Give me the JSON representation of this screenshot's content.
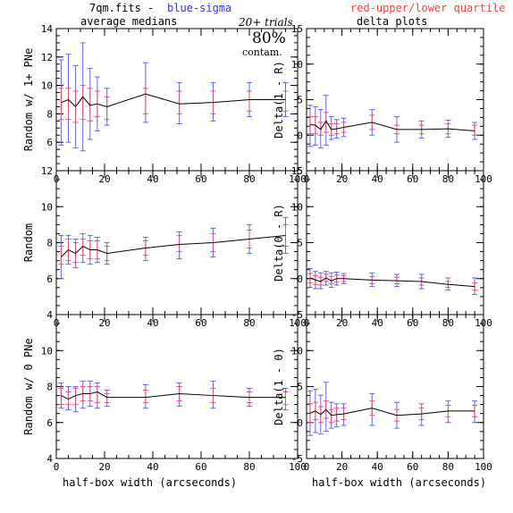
{
  "header": {
    "file": "7qm.fits  -",
    "blue_label": "blue-sigma",
    "red_label": "red-upper/lower quartile",
    "left_subtitle": "average medians",
    "right_subtitle": "delta plots",
    "trials": "20+ trials",
    "percent": "80%",
    "contam": "contam."
  },
  "colors": {
    "sigma": "#6666dd",
    "quartile": "#dd5577",
    "line": "#000000"
  },
  "chart_data": [
    {
      "type": "line",
      "panel": "left-top",
      "ylabel": "Random w/ 1+ PNe",
      "xlabel": "",
      "xlim": [
        0,
        100
      ],
      "ylim": [
        4,
        14
      ],
      "yticks": [
        6,
        8,
        10,
        12,
        14
      ],
      "xticks": [
        0,
        20,
        40,
        60,
        80,
        100
      ],
      "x": [
        2,
        5,
        8,
        11,
        14,
        17,
        21,
        37,
        51,
        65,
        80,
        95
      ],
      "y": [
        8.8,
        9.0,
        8.5,
        9.2,
        8.6,
        8.7,
        8.5,
        9.4,
        8.7,
        8.8,
        9.0,
        9.0
      ],
      "sigma_low": [
        5.8,
        6.0,
        5.6,
        5.4,
        6.2,
        6.8,
        7.2,
        7.4,
        7.3,
        7.5,
        7.8,
        7.8
      ],
      "sigma_high": [
        11.8,
        12.2,
        11.4,
        13.0,
        11.2,
        10.6,
        9.8,
        11.6,
        10.2,
        10.2,
        10.2,
        10.2
      ],
      "q_low": [
        7.6,
        7.6,
        7.4,
        7.6,
        7.5,
        7.8,
        7.6,
        8.0,
        8.0,
        8.0,
        8.2,
        8.2
      ],
      "q_high": [
        9.8,
        9.8,
        9.6,
        10.0,
        9.8,
        9.6,
        9.2,
        9.8,
        9.6,
        9.6,
        9.6,
        9.6
      ]
    },
    {
      "type": "line",
      "panel": "left-mid",
      "ylabel": "Random",
      "xlabel": "",
      "xlim": [
        0,
        100
      ],
      "ylim": [
        4,
        12
      ],
      "yticks": [
        4,
        6,
        8,
        10,
        12
      ],
      "xticks": [
        0,
        20,
        40,
        60,
        80,
        100
      ],
      "x": [
        2,
        5,
        8,
        11,
        14,
        17,
        21,
        37,
        51,
        65,
        80,
        95
      ],
      "y": [
        7.2,
        7.6,
        7.4,
        7.8,
        7.6,
        7.6,
        7.4,
        7.7,
        7.9,
        8.0,
        8.2,
        8.4
      ],
      "sigma_low": [
        6.0,
        6.8,
        6.6,
        6.9,
        6.8,
        6.9,
        6.8,
        7.0,
        7.1,
        7.2,
        7.4,
        7.4
      ],
      "sigma_high": [
        8.4,
        8.4,
        8.2,
        8.5,
        8.4,
        8.3,
        8.0,
        8.3,
        8.6,
        8.8,
        9.0,
        9.4
      ],
      "q_low": [
        6.8,
        7.0,
        6.9,
        7.3,
        7.1,
        7.1,
        7.0,
        7.3,
        7.5,
        7.5,
        7.7,
        7.8
      ],
      "q_high": [
        7.8,
        8.2,
        8.0,
        8.2,
        8.1,
        8.1,
        7.8,
        8.1,
        8.4,
        8.5,
        8.7,
        9.0
      ]
    },
    {
      "type": "line",
      "panel": "left-bottom",
      "ylabel": "Random w/ 0 PNe",
      "xlabel": "half-box width (arcseconds)",
      "xlim": [
        0,
        100
      ],
      "ylim": [
        4,
        12
      ],
      "yticks": [
        4,
        6,
        8,
        10
      ],
      "xticks": [
        0,
        20,
        40,
        60,
        80,
        100
      ],
      "x": [
        2,
        5,
        8,
        11,
        14,
        17,
        21,
        37,
        51,
        65,
        80,
        95
      ],
      "y": [
        7.5,
        7.3,
        7.5,
        7.6,
        7.6,
        7.7,
        7.4,
        7.4,
        7.6,
        7.5,
        7.4,
        7.4
      ],
      "sigma_low": [
        6.8,
        6.7,
        6.6,
        6.8,
        6.9,
        6.8,
        6.9,
        6.8,
        6.9,
        6.8,
        6.9,
        6.7
      ],
      "sigma_high": [
        8.2,
        8.0,
        8.0,
        8.3,
        8.3,
        8.2,
        7.8,
        8.1,
        8.2,
        8.3,
        7.9,
        7.9
      ],
      "q_low": [
        7.0,
        7.0,
        7.0,
        7.2,
        7.2,
        7.1,
        7.1,
        7.1,
        7.2,
        7.1,
        7.1,
        7.0
      ],
      "q_high": [
        7.9,
        7.7,
        7.9,
        8.0,
        8.0,
        8.0,
        7.6,
        7.8,
        8.0,
        7.9,
        7.7,
        7.7
      ]
    },
    {
      "type": "line",
      "panel": "right-top",
      "ylabel": "Delta(1 - R)",
      "xlabel": "",
      "xlim": [
        0,
        100
      ],
      "ylim": [
        -5,
        15
      ],
      "yticks": [
        -5,
        0,
        5,
        10,
        15
      ],
      "xticks": [
        0,
        20,
        40,
        60,
        80,
        100
      ],
      "x": [
        2,
        5,
        8,
        11,
        14,
        17,
        21,
        37,
        51,
        65,
        80,
        95
      ],
      "y": [
        1.5,
        1.4,
        0.8,
        2.0,
        0.8,
        0.9,
        1.1,
        1.8,
        0.8,
        0.8,
        0.9,
        0.6
      ],
      "sigma_low": [
        -1.6,
        -1.4,
        -1.8,
        -1.4,
        -0.6,
        -0.4,
        -0.2,
        0.0,
        -1.0,
        -0.4,
        -0.3,
        -0.6
      ],
      "sigma_high": [
        4.2,
        4.0,
        3.6,
        5.6,
        2.6,
        2.2,
        2.4,
        3.6,
        2.6,
        2.0,
        2.1,
        1.8
      ],
      "q_low": [
        0.2,
        0.2,
        0.0,
        0.4,
        0.0,
        0.2,
        0.4,
        0.8,
        0.2,
        0.2,
        0.2,
        0.0
      ],
      "q_high": [
        2.6,
        2.6,
        1.8,
        3.2,
        1.6,
        1.6,
        1.8,
        2.8,
        1.4,
        1.4,
        1.6,
        1.4
      ]
    },
    {
      "type": "line",
      "panel": "right-mid",
      "ylabel": "Delta(0 - R)",
      "xlabel": "",
      "xlim": [
        0,
        100
      ],
      "ylim": [
        -5,
        15
      ],
      "yticks": [
        -5,
        0,
        5,
        10,
        15
      ],
      "xticks": [
        0,
        20,
        40,
        60,
        80,
        100
      ],
      "x": [
        2,
        5,
        8,
        11,
        14,
        17,
        21,
        37,
        51,
        65,
        80,
        95
      ],
      "y": [
        0.1,
        -0.2,
        -0.4,
        0.1,
        -0.3,
        0.0,
        0.0,
        -0.2,
        -0.3,
        -0.4,
        -0.8,
        -1.1
      ],
      "sigma_low": [
        -1.2,
        -1.4,
        -1.4,
        -0.9,
        -1.2,
        -0.9,
        -0.7,
        -1.1,
        -1.1,
        -1.4,
        -1.6,
        -2.2
      ],
      "sigma_high": [
        1.4,
        1.0,
        0.8,
        1.0,
        0.8,
        0.9,
        0.7,
        0.8,
        0.6,
        0.6,
        0.1,
        0.1
      ],
      "q_low": [
        -0.6,
        -0.8,
        -0.9,
        -0.4,
        -0.7,
        -0.5,
        -0.4,
        -0.7,
        -0.7,
        -0.9,
        -1.2,
        -1.6
      ],
      "q_high": [
        0.7,
        0.4,
        0.2,
        0.6,
        0.3,
        0.5,
        0.4,
        0.3,
        0.2,
        0.1,
        -0.4,
        -0.6
      ]
    },
    {
      "type": "line",
      "panel": "right-bottom",
      "ylabel": "Delta(1 - 0)",
      "xlabel": "half-box width (arcseconds)",
      "xlim": [
        0,
        100
      ],
      "ylim": [
        -5,
        15
      ],
      "yticks": [
        -5,
        0,
        5,
        10
      ],
      "xticks": [
        0,
        20,
        40,
        60,
        80,
        100
      ],
      "x": [
        2,
        5,
        8,
        11,
        14,
        17,
        21,
        37,
        51,
        65,
        80,
        95
      ],
      "y": [
        1.3,
        1.6,
        1.1,
        1.8,
        1.0,
        1.1,
        1.2,
        2.0,
        1.0,
        1.2,
        1.6,
        1.6
      ],
      "sigma_low": [
        -1.8,
        -1.4,
        -1.6,
        -1.2,
        -0.8,
        -0.6,
        -0.4,
        -0.4,
        -0.8,
        -0.4,
        0.0,
        0.0
      ],
      "sigma_high": [
        4.4,
        4.6,
        3.8,
        5.6,
        2.8,
        2.6,
        2.6,
        4.0,
        2.8,
        2.6,
        3.0,
        3.0
      ],
      "q_low": [
        0.0,
        0.4,
        0.0,
        0.6,
        0.0,
        0.2,
        0.4,
        1.0,
        0.2,
        0.4,
        0.8,
        0.8
      ],
      "q_high": [
        2.6,
        2.8,
        2.2,
        3.0,
        1.8,
        2.0,
        2.0,
        3.0,
        1.8,
        2.0,
        2.4,
        2.4
      ]
    }
  ]
}
